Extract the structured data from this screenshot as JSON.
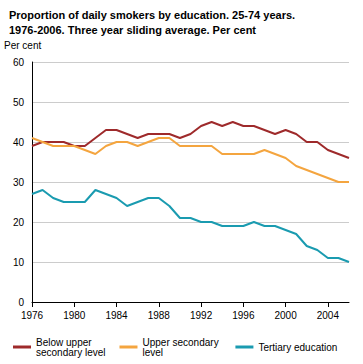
{
  "chart_data": {
    "type": "line",
    "title": "Proportion of daily smokers by education. 25-74 years.",
    "subtitle": "1976-2006. Three year sliding average. Per cent",
    "y_label": "Per cent",
    "x": [
      1976,
      1977,
      1978,
      1979,
      1980,
      1981,
      1982,
      1983,
      1984,
      1985,
      1986,
      1987,
      1988,
      1989,
      1990,
      1991,
      1992,
      1993,
      1994,
      1995,
      1996,
      1997,
      1998,
      1999,
      2000,
      2001,
      2002,
      2003,
      2004,
      2005,
      2006
    ],
    "series": [
      {
        "name": "Below upper secondary level",
        "color": "#9e2a2b",
        "values": [
          39,
          40,
          40,
          40,
          39,
          39,
          41,
          43,
          43,
          42,
          41,
          42,
          42,
          42,
          41,
          42,
          44,
          45,
          44,
          45,
          44,
          44,
          43,
          42,
          43,
          42,
          40,
          40,
          38,
          37,
          36
        ]
      },
      {
        "name": "Upper secondary level",
        "color": "#f4a53f",
        "values": [
          41,
          40,
          39,
          39,
          39,
          38,
          37,
          39,
          40,
          40,
          39,
          40,
          41,
          41,
          39,
          39,
          39,
          39,
          37,
          37,
          37,
          37,
          38,
          37,
          36,
          34,
          33,
          32,
          31,
          30,
          30
        ]
      },
      {
        "name": "Tertiary education",
        "color": "#1a9bb0",
        "values": [
          27,
          28,
          26,
          25,
          25,
          25,
          28,
          27,
          26,
          24,
          25,
          26,
          26,
          24,
          21,
          21,
          20,
          20,
          19,
          19,
          19,
          20,
          19,
          19,
          18,
          17,
          14,
          13,
          11,
          11,
          10
        ]
      }
    ],
    "xlim": [
      1976,
      2006
    ],
    "xticks": [
      1976,
      1980,
      1984,
      1988,
      1992,
      1996,
      2000,
      2004
    ],
    "ylim": [
      0,
      60
    ],
    "yticks": [
      0,
      10,
      20,
      30,
      40,
      50,
      60
    ],
    "grid": true,
    "legend": "bottom"
  }
}
